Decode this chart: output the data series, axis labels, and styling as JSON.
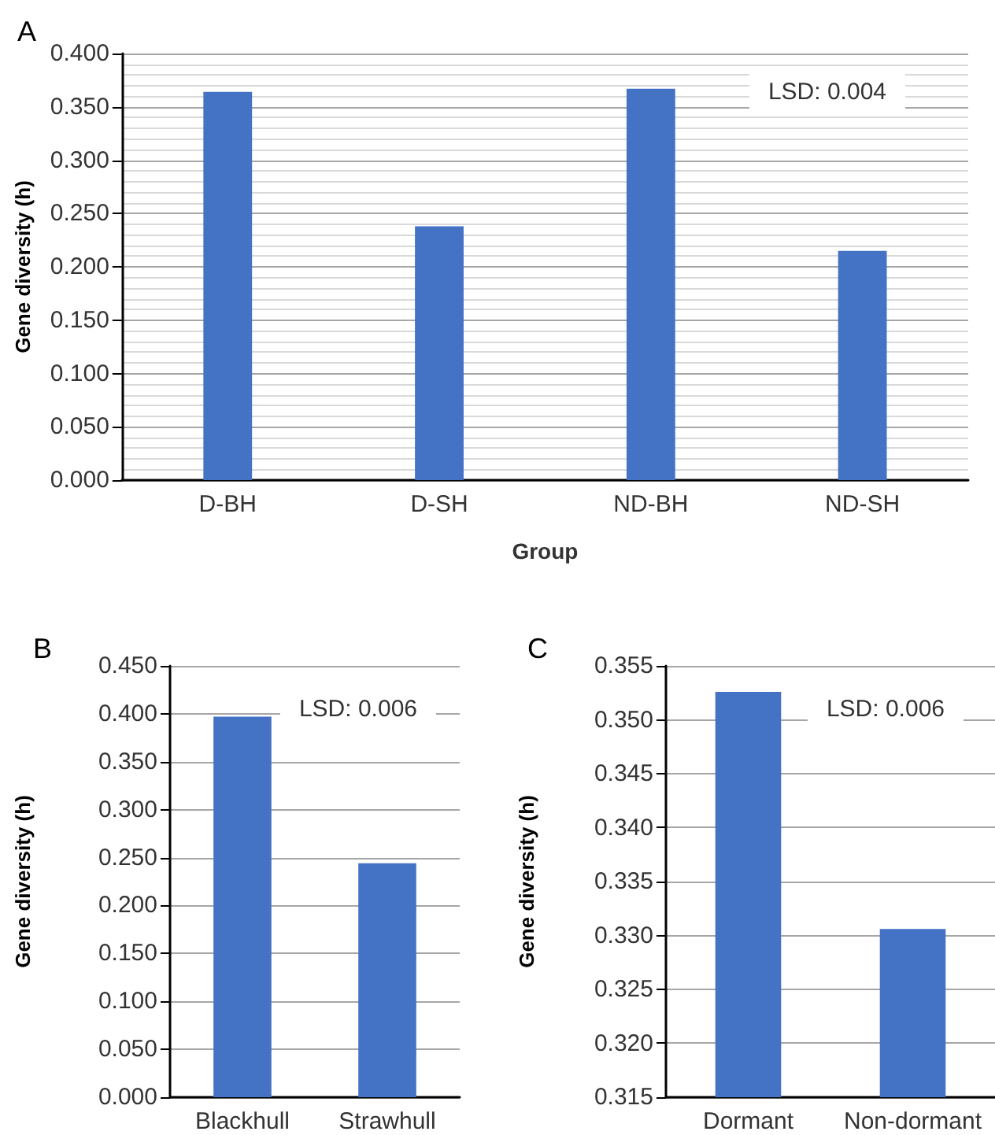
{
  "chart_data": [
    {
      "type": "bar",
      "title": "A",
      "xlabel": "Group",
      "ylabel": "Gene diversity (h)",
      "categories": [
        "D-BH",
        "D-SH",
        "ND-BH",
        "ND-SH"
      ],
      "values": [
        0.364,
        0.238,
        0.367,
        0.215
      ],
      "color": "#4472c4",
      "ylim": [
        0,
        0.4
      ],
      "yticks": [
        {
          "value": 0,
          "label": "0.000"
        },
        {
          "value": 0.01,
          "label": null
        },
        {
          "value": 0.02,
          "label": null
        },
        {
          "value": 0.03,
          "label": null
        },
        {
          "value": 0.04,
          "label": null
        },
        {
          "value": 0.05,
          "label": "0.050"
        },
        {
          "value": 0.06,
          "label": null
        },
        {
          "value": 0.07,
          "label": null
        },
        {
          "value": 0.08,
          "label": null
        },
        {
          "value": 0.09,
          "label": null
        },
        {
          "value": 0.1,
          "label": "0.100"
        },
        {
          "value": 0.11,
          "label": null
        },
        {
          "value": 0.12,
          "label": null
        },
        {
          "value": 0.13,
          "label": null
        },
        {
          "value": 0.14,
          "label": null
        },
        {
          "value": 0.15,
          "label": "0.150"
        },
        {
          "value": 0.16,
          "label": null
        },
        {
          "value": 0.17,
          "label": null
        },
        {
          "value": 0.18,
          "label": null
        },
        {
          "value": 0.19,
          "label": null
        },
        {
          "value": 0.2,
          "label": "0.200"
        },
        {
          "value": 0.21,
          "label": null
        },
        {
          "value": 0.22,
          "label": null
        },
        {
          "value": 0.23,
          "label": null
        },
        {
          "value": 0.24,
          "label": null
        },
        {
          "value": 0.25,
          "label": "0.250"
        },
        {
          "value": 0.26,
          "label": null
        },
        {
          "value": 0.27,
          "label": null
        },
        {
          "value": 0.28,
          "label": null
        },
        {
          "value": 0.29,
          "label": null
        },
        {
          "value": 0.3,
          "label": "0.300"
        },
        {
          "value": 0.31,
          "label": null
        },
        {
          "value": 0.32,
          "label": null
        },
        {
          "value": 0.33,
          "label": null
        },
        {
          "value": 0.34,
          "label": null
        },
        {
          "value": 0.35,
          "label": "0.350"
        },
        {
          "value": 0.36,
          "label": null
        },
        {
          "value": 0.37,
          "label": null
        },
        {
          "value": 0.38,
          "label": null
        },
        {
          "value": 0.39,
          "label": null
        },
        {
          "value": 0.4,
          "label": "0.400"
        }
      ],
      "grid": "y",
      "annotations": [
        "LSD: 0.004"
      ]
    },
    {
      "type": "bar",
      "title": "B",
      "ylabel": "Gene diversity (h)",
      "categories": [
        "Blackhull",
        "Strawhull"
      ],
      "values": [
        0.397,
        0.244
      ],
      "color": "#4472c4",
      "ylim": [
        0,
        0.45
      ],
      "yticks": [
        {
          "value": 0,
          "label": "0.000"
        },
        {
          "value": 0.05,
          "label": "0.050"
        },
        {
          "value": 0.1,
          "label": "0.100"
        },
        {
          "value": 0.15,
          "label": "0.150"
        },
        {
          "value": 0.2,
          "label": "0.200"
        },
        {
          "value": 0.25,
          "label": "0.250"
        },
        {
          "value": 0.3,
          "label": "0.300"
        },
        {
          "value": 0.35,
          "label": "0.350"
        },
        {
          "value": 0.4,
          "label": "0.400"
        },
        {
          "value": 0.45,
          "label": "0.450"
        }
      ],
      "grid": "y",
      "annotations": [
        "LSD: 0.006"
      ]
    },
    {
      "type": "bar",
      "title": "C",
      "ylabel": "Gene diversity (h)",
      "categories": [
        "Dormant",
        "Non-dormant"
      ],
      "values": [
        0.3526,
        0.3306
      ],
      "color": "#4472c4",
      "ylim": [
        0.315,
        0.355
      ],
      "yticks": [
        {
          "value": 0.315,
          "label": "0.315"
        },
        {
          "value": 0.32,
          "label": "0.320"
        },
        {
          "value": 0.325,
          "label": "0.325"
        },
        {
          "value": 0.33,
          "label": "0.330"
        },
        {
          "value": 0.335,
          "label": "0.335"
        },
        {
          "value": 0.34,
          "label": "0.340"
        },
        {
          "value": 0.345,
          "label": "0.345"
        },
        {
          "value": 0.35,
          "label": "0.350"
        },
        {
          "value": 0.355,
          "label": "0.355"
        }
      ],
      "grid": "y",
      "annotations": [
        "LSD: 0.006"
      ]
    }
  ]
}
